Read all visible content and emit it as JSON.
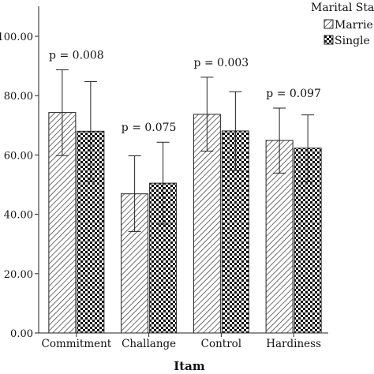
{
  "chart_data": {
    "type": "bar",
    "title": "",
    "xlabel": "Itam",
    "ylabel": "",
    "ylim": [
      0,
      100
    ],
    "yticks": [
      0,
      20,
      40,
      60,
      80,
      100
    ],
    "ytick_labels": [
      "0.00",
      "20.00",
      "40.00",
      "60.00",
      "80.00",
      "100.00"
    ],
    "categories": [
      "Commitment",
      "Challange",
      "Control",
      "Hardiness"
    ],
    "series": [
      {
        "name": "Married",
        "legend_text": "Marrie",
        "pattern": "diagonal-hatch",
        "values": [
          74.3,
          46.9,
          73.7,
          64.9
        ],
        "error_low": [
          59.8,
          34.2,
          61.3,
          53.9
        ],
        "error_high": [
          88.7,
          59.7,
          86.2,
          75.8
        ]
      },
      {
        "name": "Single",
        "legend_text": "Single",
        "pattern": "checkerboard",
        "values": [
          68.0,
          50.5,
          68.1,
          62.3
        ],
        "error_low": [
          51.2,
          36.7,
          54.8,
          51.0
        ],
        "error_high": [
          84.7,
          64.3,
          81.3,
          73.5
        ]
      }
    ],
    "annotations": [
      "p = 0.008",
      "p = 0.075",
      "p = 0.003",
      "p = 0.097"
    ],
    "legend": {
      "title": "Marital Stat",
      "position": "top-right"
    },
    "grid": false
  }
}
